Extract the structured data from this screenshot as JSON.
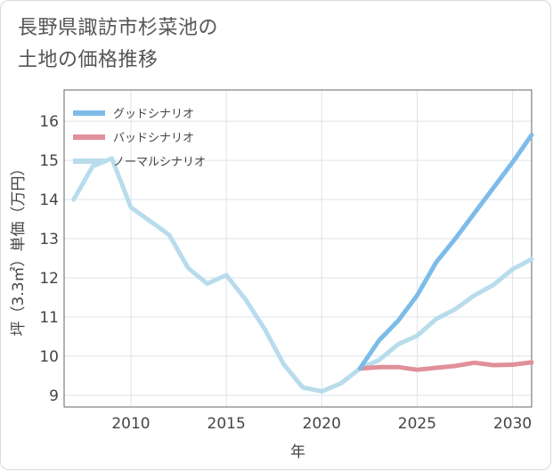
{
  "title_line1": "長野県諏訪市杉菜池の",
  "title_line2": "土地の価格推移",
  "chart_data": {
    "type": "line",
    "xlabel": "年",
    "ylabel": "坪（3.3㎡）単価（万円）",
    "xlim": [
      2006.5,
      2031
    ],
    "ylim": [
      8.7,
      16.8
    ],
    "x_ticks": [
      2010,
      2015,
      2020,
      2025,
      2030
    ],
    "y_ticks": [
      9,
      10,
      11,
      12,
      13,
      14,
      15,
      16
    ],
    "grid": true,
    "legend_position": "top-left",
    "series": [
      {
        "name": "グッドシナリオ",
        "color": "#7dbce8",
        "x": [
          2022,
          2023,
          2024,
          2025,
          2026,
          2027,
          2028,
          2029,
          2030,
          2031
        ],
        "y": [
          9.68,
          10.4,
          10.9,
          11.55,
          12.4,
          13.0,
          13.65,
          14.3,
          14.95,
          15.65
        ]
      },
      {
        "name": "バッドシナリオ",
        "color": "#e0909a",
        "x": [
          2022,
          2023,
          2024,
          2025,
          2026,
          2027,
          2028,
          2029,
          2030,
          2031
        ],
        "y": [
          9.68,
          9.72,
          9.72,
          9.65,
          9.7,
          9.75,
          9.83,
          9.77,
          9.78,
          9.84
        ]
      },
      {
        "name": "ノーマルシナリオ",
        "color": "#b8dcec",
        "x": [
          2007,
          2008,
          2009,
          2010,
          2011,
          2012,
          2013,
          2014,
          2015,
          2016,
          2017,
          2018,
          2019,
          2020,
          2021,
          2022,
          2023,
          2024,
          2025,
          2026,
          2027,
          2028,
          2029,
          2030,
          2031
        ],
        "y": [
          14.0,
          14.85,
          15.05,
          13.8,
          13.45,
          13.1,
          12.25,
          11.85,
          12.07,
          11.45,
          10.7,
          9.8,
          9.2,
          9.1,
          9.3,
          9.68,
          9.9,
          10.3,
          10.52,
          10.95,
          11.2,
          11.55,
          11.82,
          12.22,
          12.48
        ]
      }
    ]
  }
}
